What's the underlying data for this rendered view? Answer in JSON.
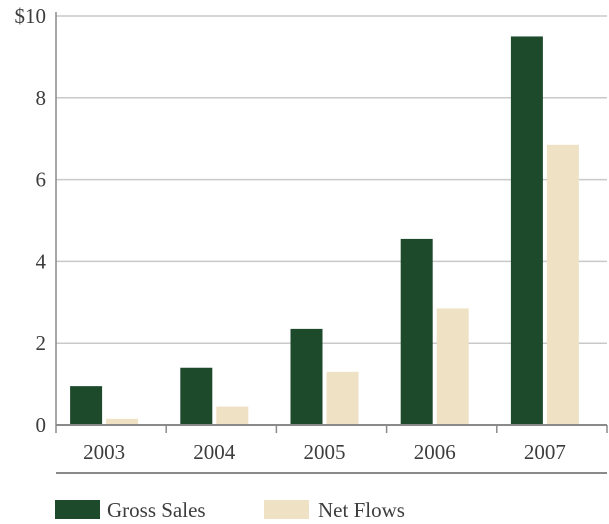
{
  "chart_data": {
    "type": "bar",
    "categories": [
      "2003",
      "2004",
      "2005",
      "2006",
      "2007"
    ],
    "series": [
      {
        "name": "Gross Sales",
        "values": [
          0.95,
          1.4,
          2.35,
          4.55,
          9.5
        ],
        "color": "#1e4a2c"
      },
      {
        "name": "Net Flows",
        "values": [
          0.15,
          0.45,
          1.3,
          2.85,
          6.85
        ],
        "color": "#efe2c4"
      }
    ],
    "yticks": [
      "0",
      "2",
      "4",
      "6",
      "8",
      "$10"
    ],
    "ytick_values": [
      0,
      2,
      4,
      6,
      8,
      10
    ],
    "ylim": [
      0,
      10
    ],
    "grid": true,
    "legend_position": "bottom-left",
    "gridline_color": "#c9c9c9",
    "axis_color": "#8a8a8a"
  }
}
